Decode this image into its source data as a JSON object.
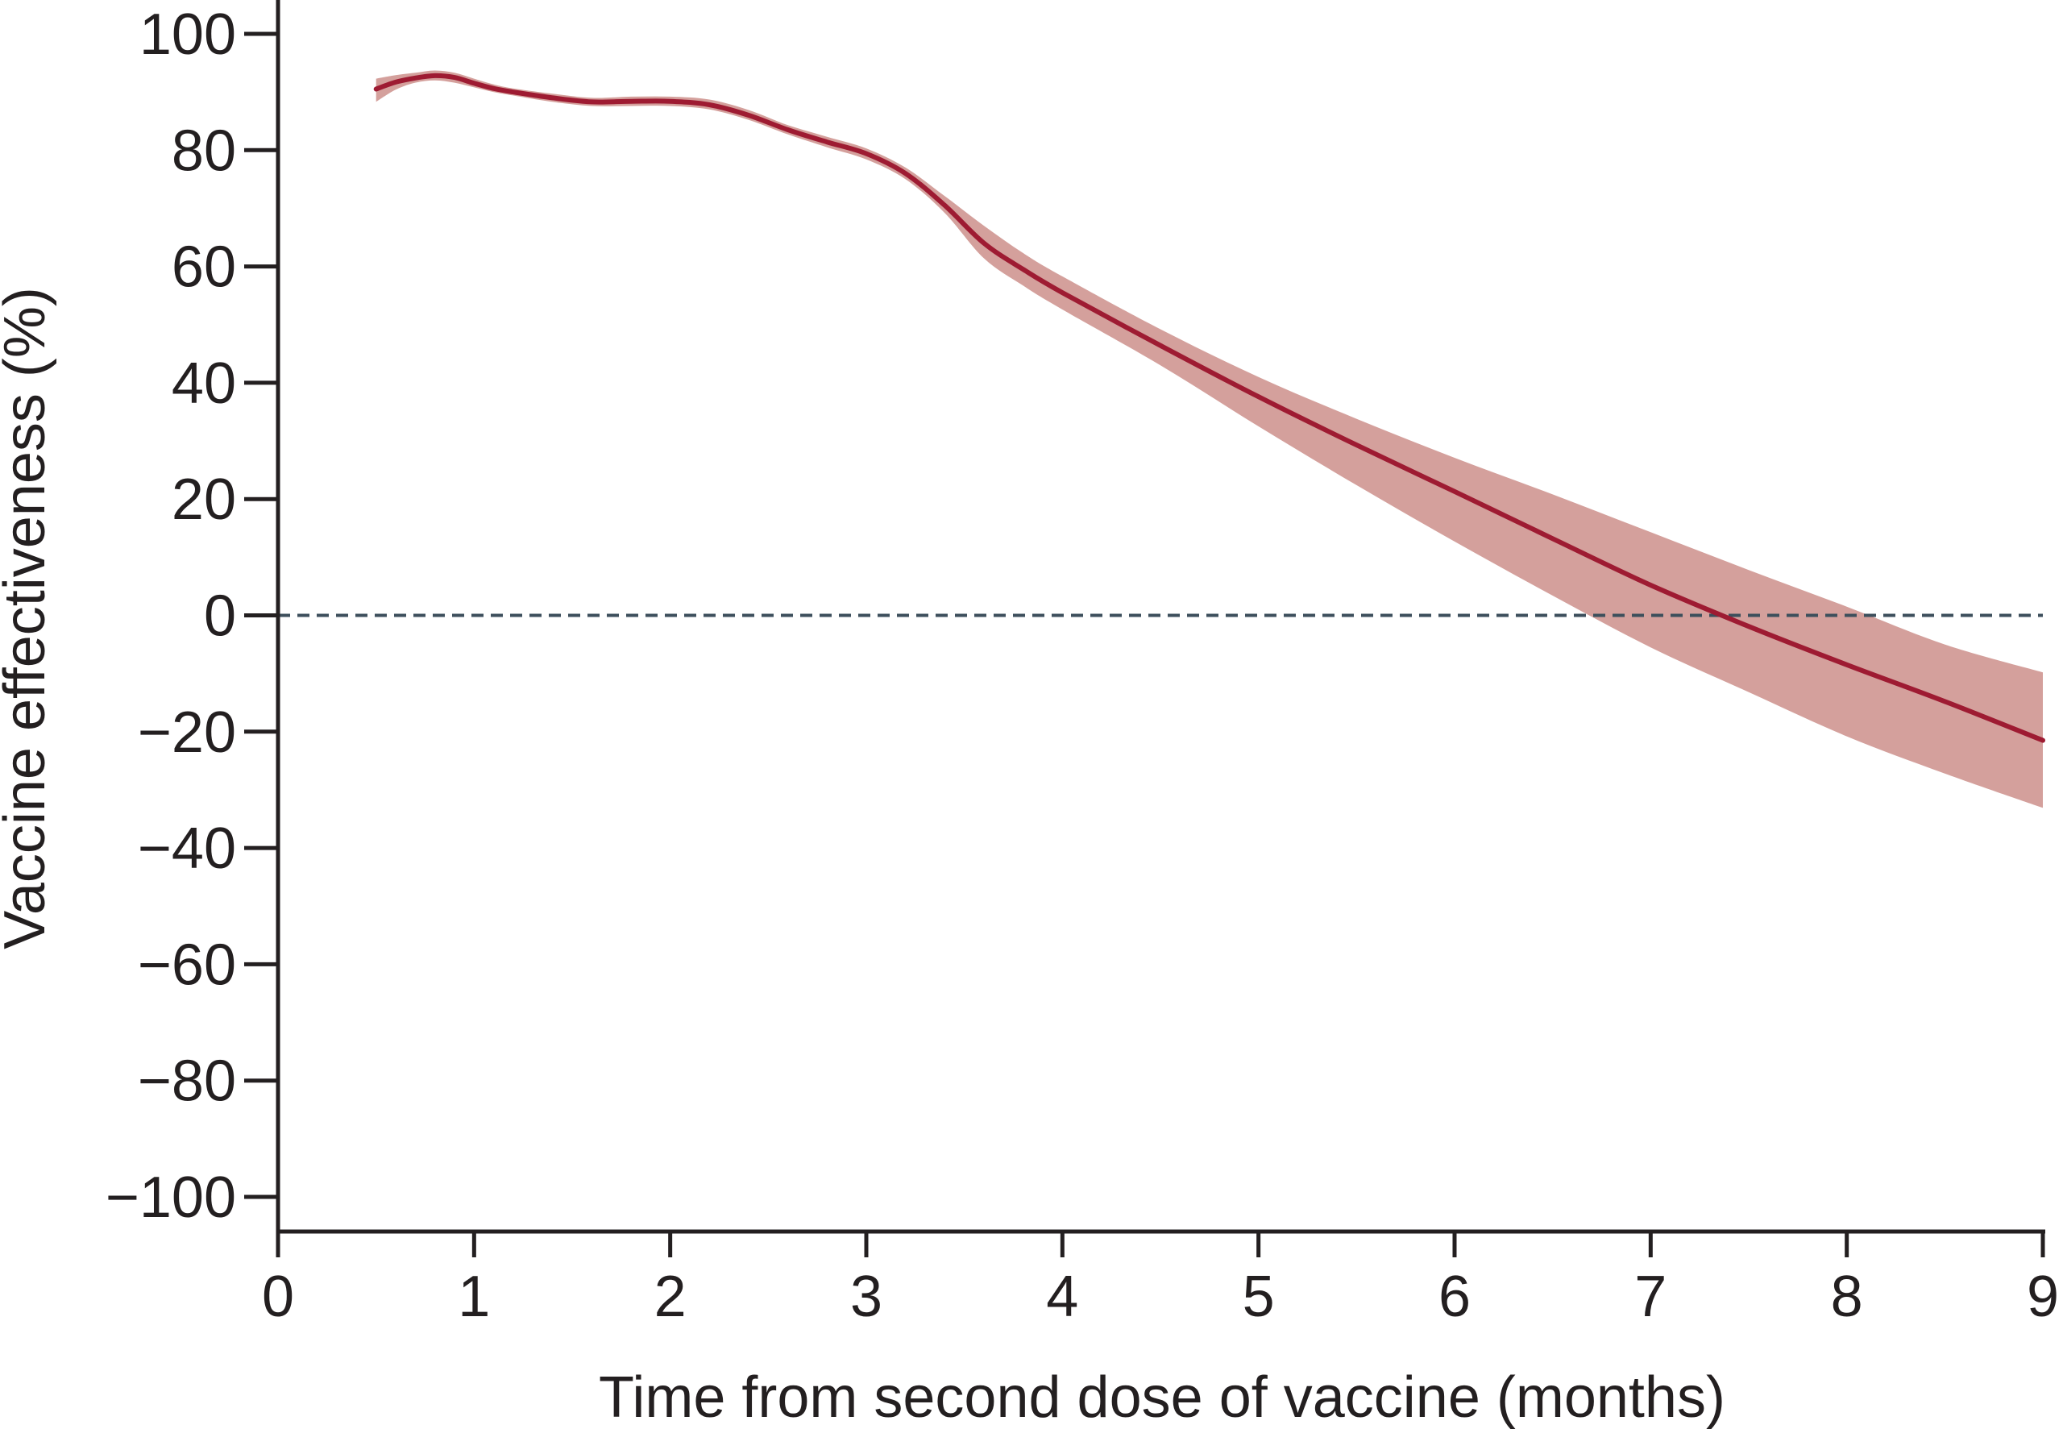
{
  "chart_data": {
    "type": "line",
    "xlabel": "Time from second dose of vaccine (months)",
    "ylabel": "Vaccine effectiveness (%)",
    "xlim": [
      0,
      9
    ],
    "ylim": [
      -100,
      100
    ],
    "x_ticks": [
      "0",
      "1",
      "2",
      "3",
      "4",
      "5",
      "6",
      "7",
      "8",
      "9"
    ],
    "y_ticks": [
      "100",
      "80",
      "60",
      "40",
      "20",
      "0",
      "−20",
      "−40",
      "−60",
      "−80",
      "−100"
    ],
    "reference_line": {
      "y": 0,
      "style": "dashed",
      "color": "#3d4f5c"
    },
    "grid": false,
    "legend": "none",
    "colors": {
      "line": "#9e1b32",
      "band": "#d4a09c",
      "axis": "#231f20"
    },
    "series": [
      {
        "x": [
          0.5,
          0.6,
          0.7,
          0.8,
          0.9,
          1.0,
          1.1,
          1.2,
          1.4,
          1.6,
          1.8,
          2.0,
          2.2,
          2.4,
          2.6,
          2.8,
          3.0,
          3.2,
          3.4,
          3.6,
          3.8,
          4.0,
          4.5,
          5.0,
          5.5,
          6.0,
          6.5,
          7.0,
          7.5,
          8.0,
          8.5,
          9.0
        ],
        "y": [
          90.5,
          91.7,
          92.4,
          92.8,
          92.5,
          91.5,
          90.6,
          90.0,
          89.0,
          88.3,
          88.4,
          88.4,
          87.8,
          86.0,
          83.5,
          81.4,
          79.4,
          76.0,
          70.5,
          64.0,
          59.5,
          55.5,
          46.4,
          37.6,
          29.3,
          21.3,
          13.2,
          5.2,
          -1.9,
          -8.5,
          -14.8,
          -21.5
        ],
        "lower": [
          88.3,
          90.4,
          91.6,
          92.0,
          91.6,
          90.8,
          90.0,
          89.4,
          88.3,
          87.6,
          87.6,
          87.6,
          87.0,
          85.2,
          82.7,
          80.5,
          78.4,
          75.0,
          69.2,
          61.4,
          56.7,
          52.6,
          43.0,
          32.5,
          22.4,
          12.7,
          3.4,
          -5.5,
          -13.2,
          -20.8,
          -27.2,
          -33.1
        ],
        "upper": [
          92.3,
          92.9,
          93.3,
          93.7,
          93.3,
          92.3,
          91.3,
          90.6,
          89.7,
          89.0,
          89.2,
          89.2,
          88.7,
          86.9,
          84.3,
          82.3,
          80.3,
          77.0,
          72.1,
          67.0,
          62.3,
          58.3,
          49.2,
          41.0,
          33.8,
          27.1,
          20.8,
          14.3,
          7.8,
          1.5,
          -5.0,
          -9.8
        ]
      }
    ]
  }
}
